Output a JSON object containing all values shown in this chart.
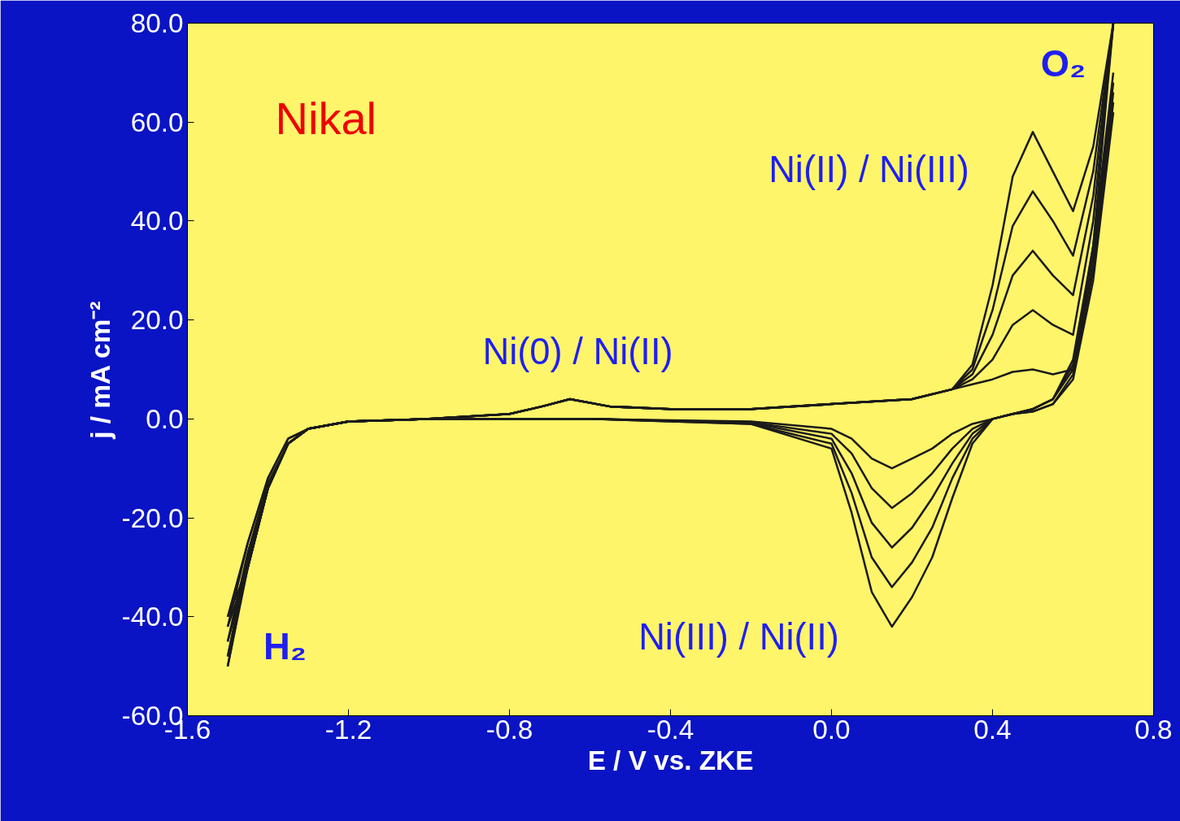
{
  "chart_data": {
    "type": "line",
    "xlabel": "E / V vs. ZKE",
    "ylabel": "j / mA cm⁻²",
    "series": [
      {
        "color": "#1a1a1a",
        "x": [
          -1.5,
          -1.45,
          -1.4,
          -1.35,
          -1.3,
          -1.2,
          -1.0,
          -0.8,
          -0.72,
          -0.65,
          -0.55,
          -0.4,
          -0.2,
          0.0,
          0.2,
          0.3,
          0.35,
          0.4,
          0.45,
          0.5,
          0.55,
          0.6,
          0.65,
          0.7
        ],
        "values": [
          -40,
          -30,
          -14,
          -5,
          -2,
          -0.5,
          0,
          1,
          2.5,
          4,
          2.5,
          2,
          2,
          3,
          4,
          6,
          7,
          8,
          9.5,
          10,
          9,
          10,
          35,
          80
        ]
      },
      {
        "color": "#1a1a1a",
        "x": [
          0.7,
          0.65,
          0.6,
          0.55,
          0.5,
          0.45,
          0.4,
          0.35,
          0.3,
          0.25,
          0.2,
          0.15,
          0.1,
          0.05,
          0.0,
          -0.2,
          -0.6,
          -1.0,
          -1.2,
          -1.3,
          -1.35,
          -1.4,
          -1.45,
          -1.5
        ],
        "values": [
          70,
          35,
          12,
          4,
          2,
          1,
          0,
          -1,
          -3,
          -6,
          -8,
          -10,
          -8,
          -4,
          -2,
          -0.5,
          0,
          0,
          -0.5,
          -2,
          -4,
          -12,
          -25,
          -40
        ]
      },
      {
        "color": "#1a1a1a",
        "x": [
          -1.5,
          -1.45,
          -1.4,
          -1.35,
          -1.3,
          -1.2,
          -1.0,
          -0.8,
          -0.72,
          -0.65,
          -0.55,
          -0.4,
          -0.2,
          0.0,
          0.2,
          0.3,
          0.35,
          0.4,
          0.45,
          0.5,
          0.55,
          0.6,
          0.65,
          0.7
        ],
        "values": [
          -42,
          -30,
          -14,
          -5,
          -2,
          -0.5,
          0,
          1,
          2.5,
          4,
          2.5,
          2,
          2,
          3,
          4,
          6,
          8,
          12,
          19,
          22,
          19,
          17,
          40,
          80
        ]
      },
      {
        "color": "#1a1a1a",
        "x": [
          0.7,
          0.65,
          0.6,
          0.55,
          0.5,
          0.45,
          0.4,
          0.35,
          0.3,
          0.25,
          0.2,
          0.15,
          0.1,
          0.05,
          0.0,
          -0.2,
          -0.6,
          -1.0,
          -1.2,
          -1.3,
          -1.35,
          -1.4,
          -1.45,
          -1.5
        ],
        "values": [
          68,
          33,
          11,
          4,
          2,
          1,
          0,
          -2,
          -6,
          -11,
          -15,
          -18,
          -14,
          -7,
          -3,
          -0.7,
          0,
          0,
          -0.5,
          -2,
          -4,
          -12,
          -25,
          -42
        ]
      },
      {
        "color": "#1a1a1a",
        "x": [
          -1.5,
          -1.45,
          -1.4,
          -1.35,
          -1.3,
          -1.2,
          -1.0,
          -0.8,
          -0.72,
          -0.65,
          -0.55,
          -0.4,
          -0.2,
          0.0,
          0.2,
          0.3,
          0.35,
          0.4,
          0.45,
          0.5,
          0.55,
          0.6,
          0.65,
          0.7
        ],
        "values": [
          -45,
          -30,
          -14,
          -5,
          -2,
          -0.5,
          0,
          1,
          2.5,
          4,
          2.5,
          2,
          2,
          3,
          4,
          6,
          9,
          17,
          29,
          34,
          29,
          25,
          45,
          80
        ]
      },
      {
        "color": "#1a1a1a",
        "x": [
          0.7,
          0.65,
          0.6,
          0.55,
          0.5,
          0.45,
          0.4,
          0.35,
          0.3,
          0.25,
          0.2,
          0.15,
          0.1,
          0.05,
          0.0,
          -0.2,
          -0.6,
          -1.0,
          -1.2,
          -1.3,
          -1.35,
          -1.4,
          -1.45,
          -1.5
        ],
        "values": [
          66,
          31,
          10,
          4,
          2,
          1,
          0,
          -3,
          -9,
          -16,
          -22,
          -26,
          -21,
          -11,
          -4,
          -0.8,
          0,
          0,
          -0.5,
          -2,
          -5,
          -13,
          -27,
          -45
        ]
      },
      {
        "color": "#1a1a1a",
        "x": [
          -1.5,
          -1.45,
          -1.4,
          -1.35,
          -1.3,
          -1.2,
          -1.0,
          -0.8,
          -0.72,
          -0.65,
          -0.55,
          -0.4,
          -0.2,
          0.0,
          0.2,
          0.3,
          0.35,
          0.4,
          0.45,
          0.5,
          0.55,
          0.6,
          0.65,
          0.7
        ],
        "values": [
          -48,
          -30,
          -14,
          -5,
          -2,
          -0.5,
          0,
          1,
          2.5,
          4,
          2.5,
          2,
          2,
          3,
          4,
          6,
          10,
          22,
          39,
          46,
          40,
          33,
          50,
          80
        ]
      },
      {
        "color": "#1a1a1a",
        "x": [
          0.7,
          0.65,
          0.6,
          0.55,
          0.5,
          0.45,
          0.4,
          0.35,
          0.3,
          0.25,
          0.2,
          0.15,
          0.1,
          0.05,
          0.0,
          -0.2,
          -0.6,
          -1.0,
          -1.2,
          -1.3,
          -1.35,
          -1.4,
          -1.45,
          -1.5
        ],
        "values": [
          64,
          30,
          9,
          3,
          1.5,
          1,
          0,
          -4,
          -12,
          -22,
          -29,
          -34,
          -28,
          -15,
          -5,
          -1,
          0,
          0,
          -0.5,
          -2,
          -5,
          -14,
          -28,
          -48
        ]
      },
      {
        "color": "#1a1a1a",
        "x": [
          -1.5,
          -1.45,
          -1.4,
          -1.35,
          -1.3,
          -1.2,
          -1.0,
          -0.8,
          -0.72,
          -0.65,
          -0.55,
          -0.4,
          -0.2,
          0.0,
          0.2,
          0.3,
          0.35,
          0.4,
          0.45,
          0.5,
          0.55,
          0.6,
          0.65,
          0.7
        ],
        "values": [
          -50,
          -30,
          -14,
          -5,
          -2,
          -0.5,
          0,
          1,
          2.5,
          4,
          2.5,
          2,
          2,
          3,
          4,
          6,
          11,
          27,
          49,
          58,
          50,
          42,
          55,
          80
        ]
      },
      {
        "color": "#1a1a1a",
        "x": [
          0.7,
          0.65,
          0.6,
          0.55,
          0.5,
          0.45,
          0.4,
          0.35,
          0.3,
          0.25,
          0.2,
          0.15,
          0.1,
          0.05,
          0.0,
          -0.2,
          -0.6,
          -1.0,
          -1.2,
          -1.3,
          -1.35,
          -1.4,
          -1.45,
          -1.5
        ],
        "values": [
          62,
          28,
          8,
          3,
          1.5,
          1,
          0,
          -5,
          -16,
          -28,
          -36,
          -42,
          -35,
          -19,
          -6,
          -1,
          0,
          0,
          -0.5,
          -2,
          -5,
          -14,
          -29,
          -50
        ]
      }
    ],
    "xlim": [
      -1.6,
      0.8
    ],
    "xticks": [
      -1.6,
      -1.2,
      -0.8,
      -0.4,
      {
        "value": 0,
        "label": "0.0"
      },
      0.4,
      0.8
    ],
    "ylim": [
      -60,
      80
    ],
    "yticks": [
      {
        "value": -60,
        "label": "-60.0"
      },
      {
        "value": -40,
        "label": "-40.0"
      },
      {
        "value": -20,
        "label": "-20.0"
      },
      {
        "value": 0,
        "label": "0.0"
      },
      {
        "value": 20,
        "label": "20.0"
      },
      {
        "value": 40,
        "label": "40.0"
      },
      {
        "value": 60,
        "label": "60.0"
      },
      {
        "value": 80,
        "label": "80.0"
      }
    ],
    "grid": false,
    "marker": "none",
    "line_style": "solid",
    "annotations": [
      "Nikal",
      "Ni(0) / Ni(II)",
      "Ni(II) / Ni(III)",
      "Ni(III) / Ni(II)",
      "O₂",
      "H₂"
    ]
  }
}
